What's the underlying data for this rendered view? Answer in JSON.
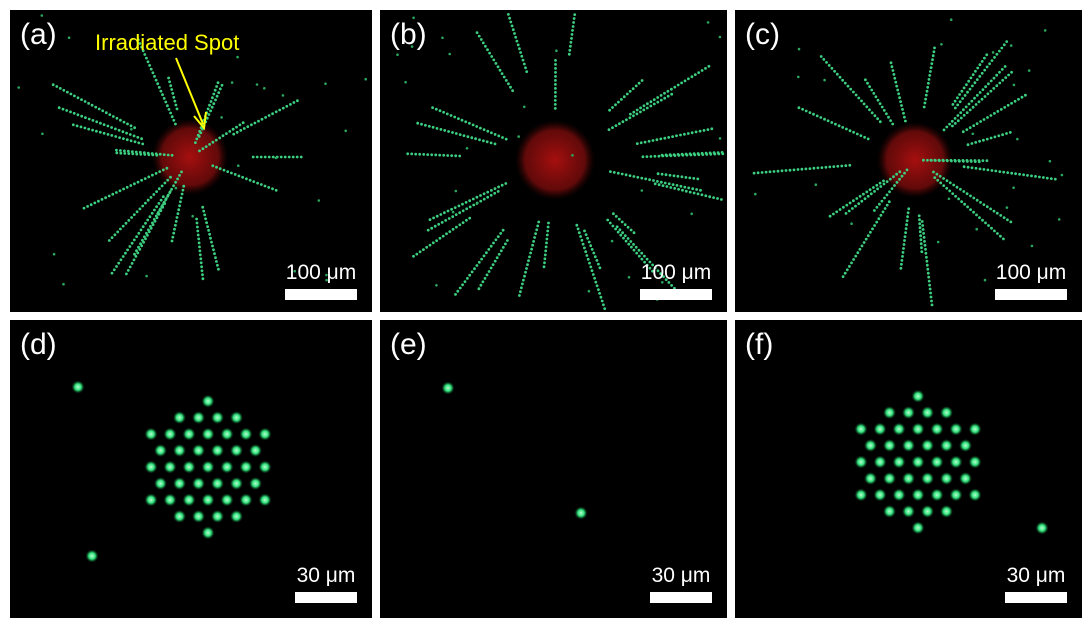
{
  "panels": [
    {
      "label": "(a)",
      "scale": "100 μm"
    },
    {
      "label": "(b)",
      "scale": "100 μm"
    },
    {
      "label": "(c)",
      "scale": "100 μm"
    },
    {
      "label": "(d)",
      "scale": "30 μm"
    },
    {
      "label": "(e)",
      "scale": "30 μm"
    },
    {
      "label": "(f)",
      "scale": "30 μm"
    }
  ],
  "annotation": "Irradiated Spot"
}
